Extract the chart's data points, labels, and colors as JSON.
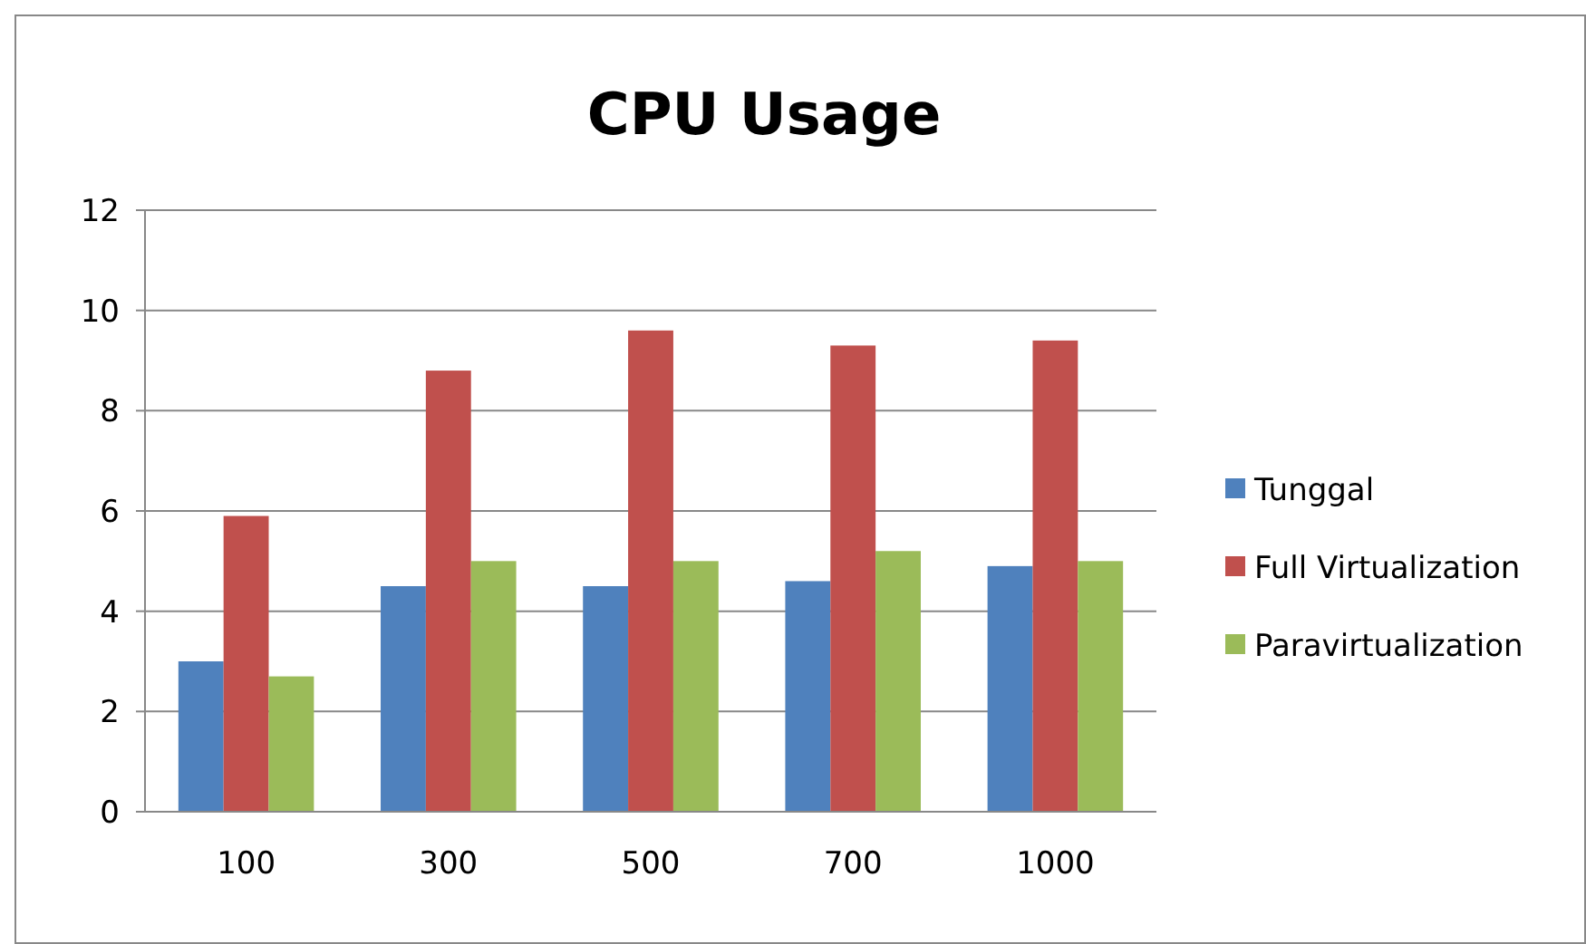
{
  "chart_data": {
    "type": "bar",
    "title": "CPU Usage",
    "categories": [
      "100",
      "300",
      "500",
      "700",
      "1000"
    ],
    "series": [
      {
        "name": "Tunggal",
        "color": "#4f81bd",
        "values": [
          3.0,
          4.5,
          4.5,
          4.6,
          4.9
        ]
      },
      {
        "name": "Full Virtualization",
        "color": "#c0504d",
        "values": [
          5.9,
          8.8,
          9.6,
          9.3,
          9.4
        ]
      },
      {
        "name": "Paravirtualization",
        "color": "#9bbb59",
        "values": [
          2.7,
          5.0,
          5.0,
          5.2,
          5.0
        ]
      }
    ],
    "ylim": [
      0,
      12
    ],
    "yticks": [
      0,
      2,
      4,
      6,
      8,
      10,
      12
    ],
    "grid": "y",
    "legend": "right"
  }
}
